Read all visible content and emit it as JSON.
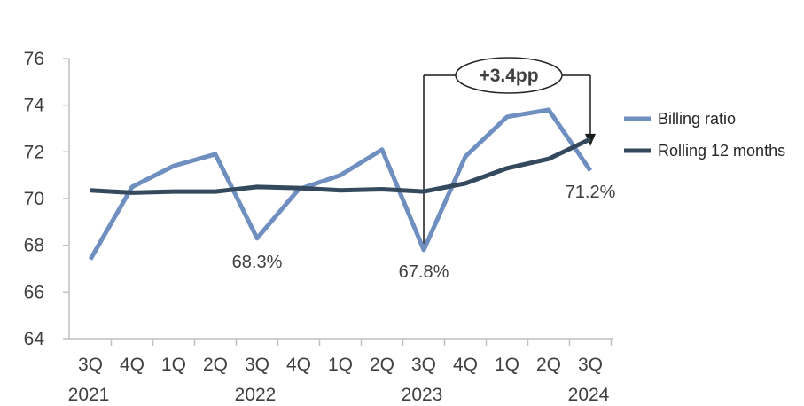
{
  "chart_data": {
    "type": "line",
    "categories": [
      "3Q",
      "4Q",
      "1Q",
      "2Q",
      "3Q",
      "4Q",
      "1Q",
      "2Q",
      "3Q",
      "4Q",
      "1Q",
      "2Q",
      "3Q"
    ],
    "year_labels": [
      {
        "index": 0,
        "label": "2021"
      },
      {
        "index": 4,
        "label": "2022"
      },
      {
        "index": 8,
        "label": "2023"
      },
      {
        "index": 12,
        "label": "2024"
      }
    ],
    "ylim": [
      64,
      76
    ],
    "yticks": [
      64,
      66,
      68,
      70,
      72,
      74,
      76
    ],
    "series": [
      {
        "name": "Billing ratio",
        "color": "#6E8FBF",
        "values": [
          67.4,
          70.5,
          71.4,
          71.9,
          68.3,
          70.4,
          71.0,
          72.1,
          67.8,
          71.8,
          73.5,
          73.8,
          71.2
        ]
      },
      {
        "name": "Rolling 12 months",
        "color": "#34495E",
        "values": [
          70.35,
          70.25,
          70.3,
          70.3,
          70.5,
          70.45,
          70.35,
          70.4,
          70.3,
          70.65,
          71.3,
          71.7,
          72.55
        ]
      }
    ],
    "annotations": [
      {
        "index": 4,
        "text": "68.3%"
      },
      {
        "index": 8,
        "text": "67.8%"
      },
      {
        "index": 12,
        "text": "71.2%"
      }
    ],
    "bracket": {
      "from_index": 8,
      "to_index": 12,
      "text": "+3.4pp"
    },
    "legend_position": "right",
    "grid": false
  }
}
